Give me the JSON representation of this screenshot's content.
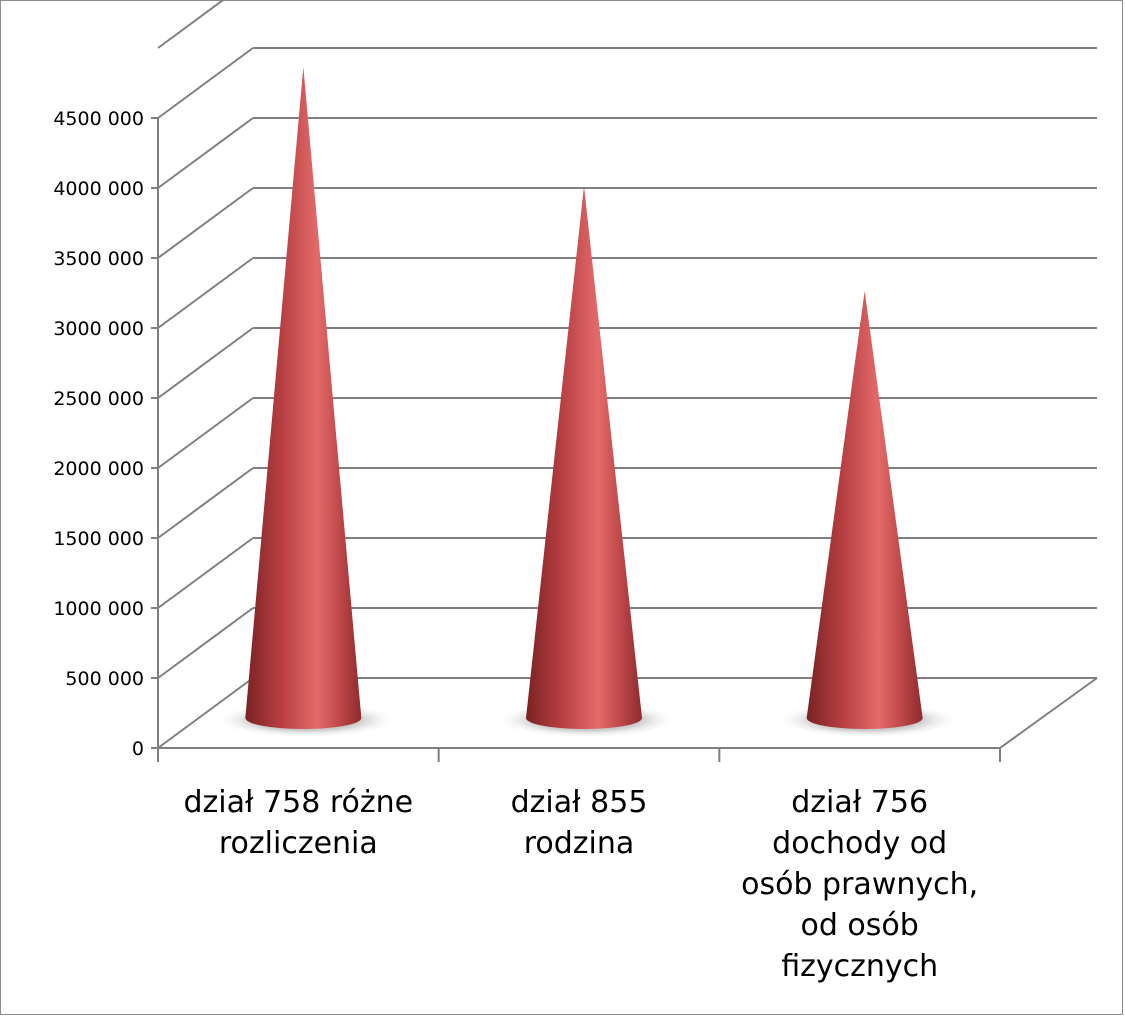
{
  "chart_data": {
    "type": "bar",
    "style": "3d-cone",
    "categories": [
      [
        "dział 758 różne",
        "rozliczenia"
      ],
      [
        "dział 855",
        "rodzina"
      ],
      [
        "dział 756",
        "dochody od",
        "osób prawnych,",
        "od osób",
        "fizycznych"
      ]
    ],
    "series": [
      {
        "values": [
          4650000,
          3800000,
          3050000
        ]
      }
    ],
    "ylim": [
      0,
      5000000
    ],
    "ytick_values": [
      0,
      500000,
      1000000,
      1500000,
      2000000,
      2500000,
      3000000,
      3500000,
      4000000,
      4500000
    ],
    "ytick_labels": [
      "0",
      "500 000",
      "1000 000",
      "1500 000",
      "2000 000",
      "2500 000",
      "3000 000",
      "3500 000",
      "4000 000",
      "4500 000"
    ],
    "title": "",
    "xlabel": "",
    "ylabel": "",
    "grid": true,
    "legend": "none",
    "colors": {
      "cone_dark": "#8e2a2c",
      "cone_mid": "#c8494c",
      "cone_light": "#e46a6a",
      "gridline": "#7f7f7f"
    }
  }
}
